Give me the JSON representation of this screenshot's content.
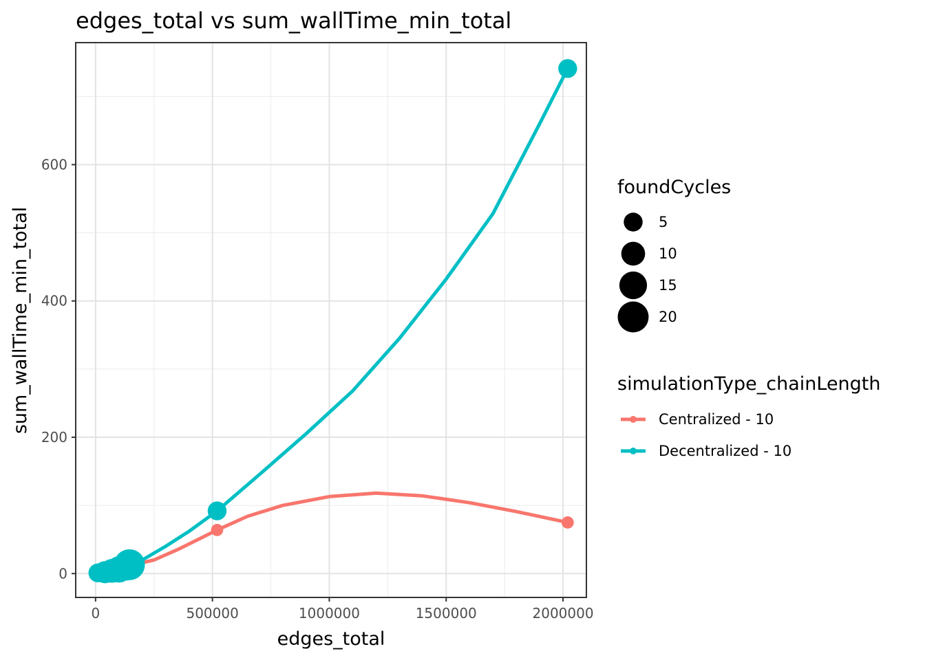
{
  "chart_data": {
    "type": "scatter",
    "title": "edges_total  vs  sum_wallTime_min_total",
    "xlabel": "edges_total",
    "ylabel": "sum_wallTime_min_total",
    "xlim": [
      -85000,
      2100000
    ],
    "ylim": [
      -35,
      779
    ],
    "x_ticks": [
      0,
      500000,
      1000000,
      1500000,
      2000000
    ],
    "x_tick_labels": [
      "0",
      "500000",
      "1000000",
      "1500000",
      "2000000"
    ],
    "y_ticks": [
      0,
      200,
      400,
      600
    ],
    "y_tick_labels": [
      "0",
      "200",
      "400",
      "600"
    ],
    "grid": true,
    "legend_position": "right",
    "size_legend": {
      "title": "foundCycles",
      "items": [
        {
          "label": "5",
          "value": 5
        },
        {
          "label": "10",
          "value": 10
        },
        {
          "label": "15",
          "value": 15
        },
        {
          "label": "20",
          "value": 20
        }
      ]
    },
    "color_legend": {
      "title": "simulationType_chainLength"
    },
    "series": [
      {
        "name": "Centralized - 10",
        "color": "#F8766D",
        "points": [
          {
            "x": 10000,
            "y": 0.5,
            "size": 1
          },
          {
            "x": 40000,
            "y": 2,
            "size": 1
          },
          {
            "x": 70000,
            "y": 4,
            "size": 1
          },
          {
            "x": 100000,
            "y": 8,
            "size": 1
          },
          {
            "x": 140000,
            "y": 14,
            "size": 1
          },
          {
            "x": 520000,
            "y": 64,
            "size": 1
          },
          {
            "x": 2020000,
            "y": 75,
            "size": 1
          }
        ],
        "curve": [
          [
            10000,
            5
          ],
          [
            60000,
            7
          ],
          [
            110000,
            10
          ],
          [
            160000,
            13
          ],
          [
            250000,
            20
          ],
          [
            350000,
            35
          ],
          [
            450000,
            52
          ],
          [
            520000,
            64
          ],
          [
            650000,
            84
          ],
          [
            800000,
            100
          ],
          [
            1000000,
            113
          ],
          [
            1200000,
            118
          ],
          [
            1400000,
            114
          ],
          [
            1600000,
            104
          ],
          [
            1800000,
            91
          ],
          [
            2020000,
            75
          ]
        ]
      },
      {
        "name": "Decentralized - 10",
        "color": "#00BFC4",
        "points": [
          {
            "x": 10000,
            "y": 1,
            "size": 5
          },
          {
            "x": 40000,
            "y": 2,
            "size": 8
          },
          {
            "x": 70000,
            "y": 4,
            "size": 10
          },
          {
            "x": 100000,
            "y": 6,
            "size": 13
          },
          {
            "x": 130000,
            "y": 10,
            "size": 15
          },
          {
            "x": 145000,
            "y": 13,
            "size": 20
          },
          {
            "x": 520000,
            "y": 92,
            "size": 5
          },
          {
            "x": 2020000,
            "y": 741,
            "size": 5
          }
        ],
        "curve": [
          [
            10000,
            1
          ],
          [
            100000,
            5
          ],
          [
            200000,
            20
          ],
          [
            300000,
            40
          ],
          [
            400000,
            62
          ],
          [
            520000,
            92
          ],
          [
            700000,
            145
          ],
          [
            900000,
            205
          ],
          [
            1100000,
            268
          ],
          [
            1300000,
            345
          ],
          [
            1500000,
            432
          ],
          [
            1700000,
            528
          ],
          [
            1900000,
            660
          ],
          [
            2020000,
            741
          ]
        ]
      }
    ]
  }
}
